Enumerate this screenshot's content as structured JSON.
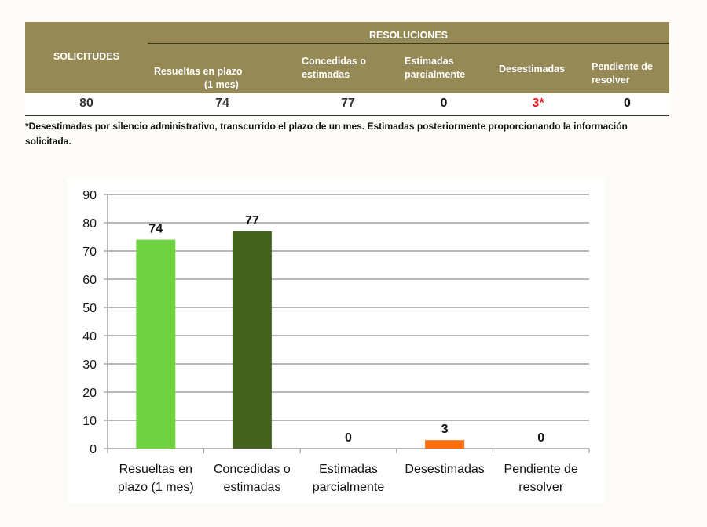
{
  "table": {
    "solicitudes_header": "SOLICITUDES",
    "resoluciones_header": "RESOLUCIONES",
    "columns": [
      "Resueltas en plazo",
      "(1 mes)",
      "Concedidas o",
      "estimadas",
      "Estimadas",
      "parcialmente",
      "Desestimadas",
      "Pendiente de",
      "resolver"
    ],
    "values": {
      "solicitudes": "80",
      "resueltas": "74",
      "concedidas": "77",
      "estimadas": "0",
      "desestimadas": "3*",
      "pendiente": "0"
    },
    "highlight_color": "#e8141c",
    "header_color": "#958a55"
  },
  "footnote": "*Desestimadas por silencio administrativo, transcurrido el plazo de un mes. Estimadas posteriormente proporcionando la información solicitada.",
  "chart_data": {
    "type": "bar",
    "categories": [
      [
        "Resueltas en",
        "plazo (1 mes)"
      ],
      [
        "Concedidas o",
        "estimadas"
      ],
      [
        "Estimadas",
        "parcialmente"
      ],
      [
        "Desestimadas"
      ],
      [
        "Pendiente de",
        "resolver"
      ]
    ],
    "values": [
      74,
      77,
      0,
      3,
      0
    ],
    "colors": [
      "#6ed241",
      "#44621e",
      "#6ed241",
      "#ff7110",
      "#6ed241"
    ],
    "ylim": [
      0,
      90
    ],
    "yticks": [
      0,
      10,
      20,
      30,
      40,
      50,
      60,
      70,
      80,
      90
    ],
    "grid": true,
    "data_labels": true,
    "legend": "none"
  }
}
